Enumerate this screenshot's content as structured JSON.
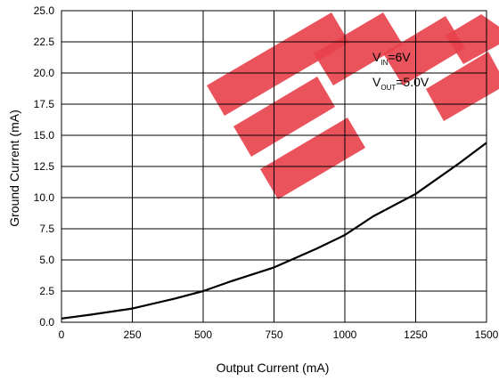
{
  "chart_data": {
    "type": "line",
    "title": "",
    "xlabel": "Output Current (mA)",
    "ylabel": "Ground Current (mA)",
    "xlim": [
      0,
      1500
    ],
    "ylim": [
      0,
      25
    ],
    "grid": true,
    "x_ticks": [
      "0",
      "250",
      "500",
      "750",
      "1000",
      "1250",
      "1500"
    ],
    "x_tick_values": [
      0,
      250,
      500,
      750,
      1000,
      1250,
      1500
    ],
    "y_ticks": [
      "0.0",
      "2.5",
      "5.0",
      "7.5",
      "10.0",
      "12.5",
      "15.0",
      "17.5",
      "20.0",
      "22.5",
      "25.0"
    ],
    "y_tick_values": [
      0,
      2.5,
      5,
      7.5,
      10,
      12.5,
      15,
      17.5,
      20,
      22.5,
      25
    ],
    "series": [
      {
        "x": [
          0,
          100,
          250,
          400,
          500,
          600,
          750,
          900,
          1000,
          1100,
          1250,
          1400,
          1500
        ],
        "y": [
          0.3,
          0.6,
          1.1,
          1.9,
          2.5,
          3.3,
          4.4,
          5.9,
          7.0,
          8.5,
          10.3,
          12.7,
          14.4
        ],
        "color": "#000000"
      }
    ],
    "annotations": {
      "vin": {
        "main": "V",
        "sub": "IN",
        "value": "=6V"
      },
      "vout": {
        "main": "V",
        "sub": "OUT",
        "value": "=5.0V"
      }
    },
    "watermark_color": "#e8404a"
  }
}
